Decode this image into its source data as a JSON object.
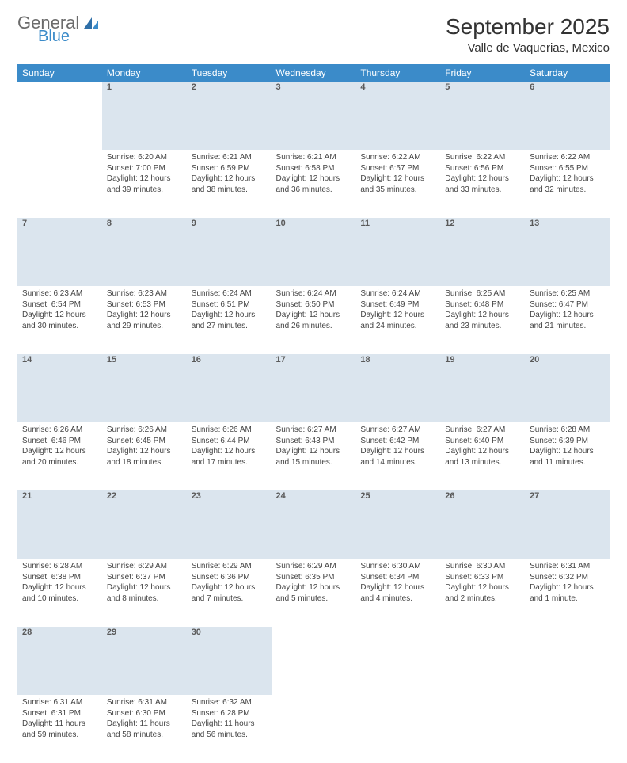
{
  "logo": {
    "general": "General",
    "blue": "Blue"
  },
  "title": {
    "month": "September 2025",
    "location": "Valle de Vaquerias, Mexico"
  },
  "colors": {
    "header_bg": "#3b8bc9",
    "header_text": "#ffffff",
    "daynum_bg": "#dbe5ee",
    "text": "#333333",
    "logo_gray": "#6b6b6b",
    "logo_blue": "#3b8bc9"
  },
  "weekdays": [
    "Sunday",
    "Monday",
    "Tuesday",
    "Wednesday",
    "Thursday",
    "Friday",
    "Saturday"
  ],
  "weeks": [
    [
      {
        "n": "",
        "sr": "",
        "ss": "",
        "dl": ""
      },
      {
        "n": "1",
        "sr": "Sunrise: 6:20 AM",
        "ss": "Sunset: 7:00 PM",
        "dl": "Daylight: 12 hours and 39 minutes."
      },
      {
        "n": "2",
        "sr": "Sunrise: 6:21 AM",
        "ss": "Sunset: 6:59 PM",
        "dl": "Daylight: 12 hours and 38 minutes."
      },
      {
        "n": "3",
        "sr": "Sunrise: 6:21 AM",
        "ss": "Sunset: 6:58 PM",
        "dl": "Daylight: 12 hours and 36 minutes."
      },
      {
        "n": "4",
        "sr": "Sunrise: 6:22 AM",
        "ss": "Sunset: 6:57 PM",
        "dl": "Daylight: 12 hours and 35 minutes."
      },
      {
        "n": "5",
        "sr": "Sunrise: 6:22 AM",
        "ss": "Sunset: 6:56 PM",
        "dl": "Daylight: 12 hours and 33 minutes."
      },
      {
        "n": "6",
        "sr": "Sunrise: 6:22 AM",
        "ss": "Sunset: 6:55 PM",
        "dl": "Daylight: 12 hours and 32 minutes."
      }
    ],
    [
      {
        "n": "7",
        "sr": "Sunrise: 6:23 AM",
        "ss": "Sunset: 6:54 PM",
        "dl": "Daylight: 12 hours and 30 minutes."
      },
      {
        "n": "8",
        "sr": "Sunrise: 6:23 AM",
        "ss": "Sunset: 6:53 PM",
        "dl": "Daylight: 12 hours and 29 minutes."
      },
      {
        "n": "9",
        "sr": "Sunrise: 6:24 AM",
        "ss": "Sunset: 6:51 PM",
        "dl": "Daylight: 12 hours and 27 minutes."
      },
      {
        "n": "10",
        "sr": "Sunrise: 6:24 AM",
        "ss": "Sunset: 6:50 PM",
        "dl": "Daylight: 12 hours and 26 minutes."
      },
      {
        "n": "11",
        "sr": "Sunrise: 6:24 AM",
        "ss": "Sunset: 6:49 PM",
        "dl": "Daylight: 12 hours and 24 minutes."
      },
      {
        "n": "12",
        "sr": "Sunrise: 6:25 AM",
        "ss": "Sunset: 6:48 PM",
        "dl": "Daylight: 12 hours and 23 minutes."
      },
      {
        "n": "13",
        "sr": "Sunrise: 6:25 AM",
        "ss": "Sunset: 6:47 PM",
        "dl": "Daylight: 12 hours and 21 minutes."
      }
    ],
    [
      {
        "n": "14",
        "sr": "Sunrise: 6:26 AM",
        "ss": "Sunset: 6:46 PM",
        "dl": "Daylight: 12 hours and 20 minutes."
      },
      {
        "n": "15",
        "sr": "Sunrise: 6:26 AM",
        "ss": "Sunset: 6:45 PM",
        "dl": "Daylight: 12 hours and 18 minutes."
      },
      {
        "n": "16",
        "sr": "Sunrise: 6:26 AM",
        "ss": "Sunset: 6:44 PM",
        "dl": "Daylight: 12 hours and 17 minutes."
      },
      {
        "n": "17",
        "sr": "Sunrise: 6:27 AM",
        "ss": "Sunset: 6:43 PM",
        "dl": "Daylight: 12 hours and 15 minutes."
      },
      {
        "n": "18",
        "sr": "Sunrise: 6:27 AM",
        "ss": "Sunset: 6:42 PM",
        "dl": "Daylight: 12 hours and 14 minutes."
      },
      {
        "n": "19",
        "sr": "Sunrise: 6:27 AM",
        "ss": "Sunset: 6:40 PM",
        "dl": "Daylight: 12 hours and 13 minutes."
      },
      {
        "n": "20",
        "sr": "Sunrise: 6:28 AM",
        "ss": "Sunset: 6:39 PM",
        "dl": "Daylight: 12 hours and 11 minutes."
      }
    ],
    [
      {
        "n": "21",
        "sr": "Sunrise: 6:28 AM",
        "ss": "Sunset: 6:38 PM",
        "dl": "Daylight: 12 hours and 10 minutes."
      },
      {
        "n": "22",
        "sr": "Sunrise: 6:29 AM",
        "ss": "Sunset: 6:37 PM",
        "dl": "Daylight: 12 hours and 8 minutes."
      },
      {
        "n": "23",
        "sr": "Sunrise: 6:29 AM",
        "ss": "Sunset: 6:36 PM",
        "dl": "Daylight: 12 hours and 7 minutes."
      },
      {
        "n": "24",
        "sr": "Sunrise: 6:29 AM",
        "ss": "Sunset: 6:35 PM",
        "dl": "Daylight: 12 hours and 5 minutes."
      },
      {
        "n": "25",
        "sr": "Sunrise: 6:30 AM",
        "ss": "Sunset: 6:34 PM",
        "dl": "Daylight: 12 hours and 4 minutes."
      },
      {
        "n": "26",
        "sr": "Sunrise: 6:30 AM",
        "ss": "Sunset: 6:33 PM",
        "dl": "Daylight: 12 hours and 2 minutes."
      },
      {
        "n": "27",
        "sr": "Sunrise: 6:31 AM",
        "ss": "Sunset: 6:32 PM",
        "dl": "Daylight: 12 hours and 1 minute."
      }
    ],
    [
      {
        "n": "28",
        "sr": "Sunrise: 6:31 AM",
        "ss": "Sunset: 6:31 PM",
        "dl": "Daylight: 11 hours and 59 minutes."
      },
      {
        "n": "29",
        "sr": "Sunrise: 6:31 AM",
        "ss": "Sunset: 6:30 PM",
        "dl": "Daylight: 11 hours and 58 minutes."
      },
      {
        "n": "30",
        "sr": "Sunrise: 6:32 AM",
        "ss": "Sunset: 6:28 PM",
        "dl": "Daylight: 11 hours and 56 minutes."
      },
      {
        "n": "",
        "sr": "",
        "ss": "",
        "dl": ""
      },
      {
        "n": "",
        "sr": "",
        "ss": "",
        "dl": ""
      },
      {
        "n": "",
        "sr": "",
        "ss": "",
        "dl": ""
      },
      {
        "n": "",
        "sr": "",
        "ss": "",
        "dl": ""
      }
    ]
  ]
}
